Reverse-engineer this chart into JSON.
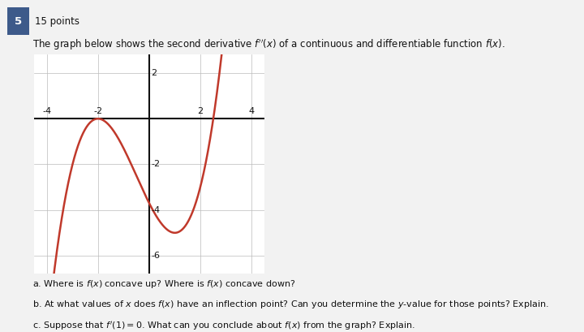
{
  "header_number": "5",
  "header_points": "15 points",
  "title_line": "The graph below shows the second derivative $f''(x)$ of a continuous and differentiable function $f(x)$.",
  "question_a": "a. Where is $f(x)$ concave up? Where is $f(x)$ concave down?",
  "question_b": "b. At what values of $x$ does $f(x)$ have an inflection point? Can you determine the $y$-value for those points? Explain.",
  "question_c": "c. Suppose that $f'(1) = 0$. What can you conclude about $f(x)$ from the graph? Explain.",
  "xlim": [
    -4.5,
    4.5
  ],
  "ylim": [
    -6.8,
    2.8
  ],
  "xticks": [
    -4,
    -2,
    0,
    2,
    4
  ],
  "yticks": [
    -6,
    -4,
    -2,
    2
  ],
  "curve_color": "#c0392b",
  "curve_linewidth": 1.8,
  "grid_color": "#bbbbbb",
  "grid_linewidth": 0.5,
  "axis_linewidth": 1.5,
  "background_color": "#ffffff",
  "page_bg": "#f2f2f2",
  "box_color": "#3d5a8a",
  "text_color": "#111111",
  "font_size_header": 8.5,
  "font_size_title": 8.5,
  "font_size_questions": 8.0,
  "font_size_tick": 8.0,
  "a_coef": 0.37037,
  "b_coef": 0.55556,
  "c_coef": -2.22222,
  "d_coef": -3.7037
}
